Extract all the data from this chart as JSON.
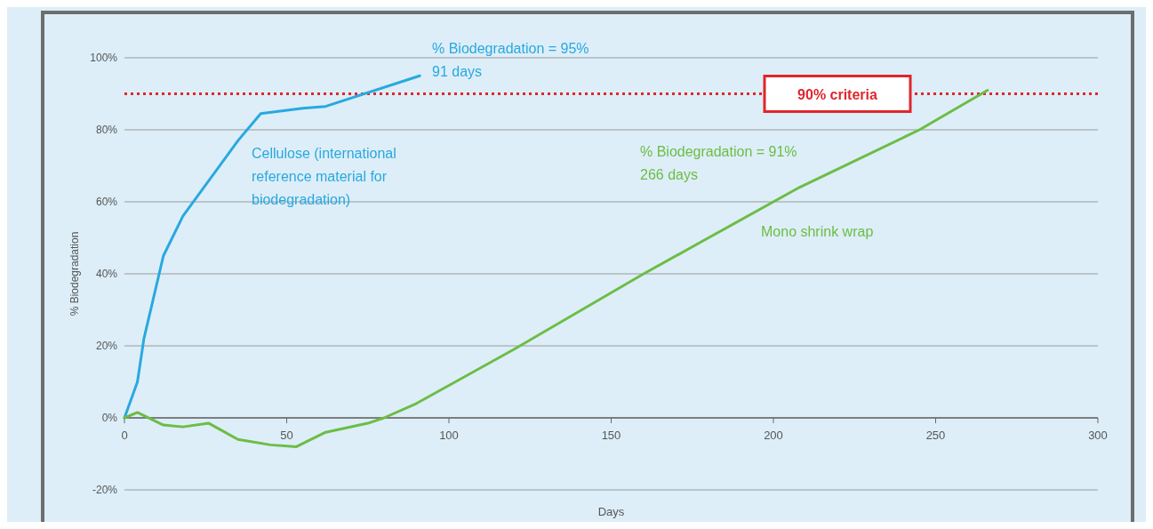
{
  "chart_data": {
    "type": "line",
    "xlabel": "Days",
    "ylabel": "% Biodegradation",
    "xlim": [
      0,
      300
    ],
    "xticks": [
      0,
      50,
      100,
      150,
      200,
      250,
      300
    ],
    "ylim": [
      -20,
      100
    ],
    "yticks": [
      {
        "value": -20,
        "label": "-20%"
      },
      {
        "value": 0,
        "label": "0%"
      },
      {
        "value": 20,
        "label": "20%"
      },
      {
        "value": 40,
        "label": "40%"
      },
      {
        "value": 60,
        "label": "60%"
      },
      {
        "value": 80,
        "label": "80%"
      },
      {
        "value": 100,
        "label": "100%"
      }
    ],
    "grid": "y",
    "line_style": "solid",
    "series": [
      {
        "name": "Cellulose (international reference material for biodegradation)",
        "color": "#29a8e0",
        "x": [
          0,
          4,
          6,
          12,
          18,
          35,
          42,
          55,
          62,
          91
        ],
        "values": [
          0,
          10,
          22,
          45,
          56,
          77,
          84.5,
          86,
          86.5,
          95
        ]
      },
      {
        "name": "Mono shrink wrap",
        "color": "#6cbd45",
        "x": [
          0,
          4,
          12,
          18,
          26,
          35,
          45,
          53,
          62,
          75,
          80,
          90,
          100,
          120,
          160,
          178,
          208,
          245,
          266
        ],
        "values": [
          0,
          1.5,
          -2,
          -2.5,
          -1.5,
          -6,
          -7.5,
          -8,
          -4,
          -1.5,
          0,
          4,
          9,
          19,
          40,
          49,
          64,
          80,
          91
        ]
      }
    ],
    "ref_lines": [
      {
        "axis": "y",
        "value": 90,
        "label": "90% criteria",
        "color": "#e0262b",
        "line_style": "dotted"
      }
    ],
    "annotations": [
      "% Biodegradation = 95%\n91 days",
      "% Biodegradation = 91%\n266 days"
    ]
  }
}
